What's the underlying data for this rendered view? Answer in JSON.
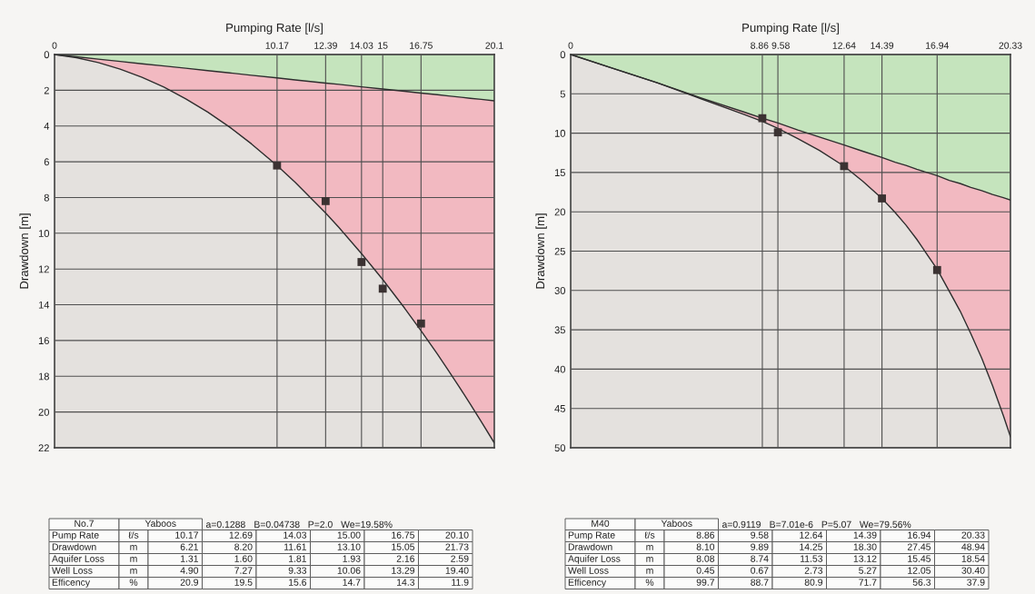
{
  "chart_data": [
    {
      "type": "area",
      "stacked": true,
      "xlabel": "Pumping Rate [l/s]",
      "ylabel": "Drawdown [m]",
      "x": [
        0,
        1,
        2,
        3,
        4,
        5,
        6,
        7,
        8,
        9,
        10.17,
        11,
        12.39,
        13,
        14.03,
        15,
        16,
        16.75,
        17.5,
        18,
        18.5,
        19,
        19.5,
        20.1
      ],
      "series": [
        {
          "color": "#c5e4bd",
          "values": [
            0,
            0.13,
            0.26,
            0.39,
            0.52,
            0.64,
            0.77,
            0.9,
            1.03,
            1.16,
            1.31,
            1.42,
            1.6,
            1.67,
            1.81,
            1.93,
            2.06,
            2.16,
            2.25,
            2.32,
            2.38,
            2.45,
            2.51,
            2.59
          ]
        },
        {
          "color": "#f2b9c1",
          "values": [
            0,
            0.05,
            0.19,
            0.43,
            0.76,
            1.18,
            1.71,
            2.32,
            3.03,
            3.84,
            4.9,
            5.73,
            7.27,
            8.01,
            9.33,
            10.66,
            12.13,
            13.29,
            14.51,
            15.35,
            16.22,
            17.1,
            18.02,
            19.14
          ]
        },
        {
          "type": "scatter",
          "marker": "square",
          "color": "#3b3232",
          "x": [
            10.17,
            12.39,
            14.03,
            15,
            16.75
          ],
          "values": [
            6.21,
            8.2,
            11.61,
            13.1,
            15.05
          ]
        }
      ],
      "xlim": [
        0,
        20.1
      ],
      "xticks": [
        0,
        10.17,
        12.39,
        14.03,
        15,
        16.75,
        20.1
      ],
      "ylim": [
        22,
        0
      ],
      "yticks": [
        0,
        2,
        4,
        6,
        8,
        10,
        12,
        14,
        16,
        18,
        20,
        22
      ],
      "grid": true,
      "annotations": [
        "No.7",
        "Yaboos",
        "a=0.1288",
        "B=0.04738",
        "P=2.0",
        "We=19.58%",
        "Pump Rate",
        "ℓ/s",
        "10.17",
        "12.69",
        "14.03",
        "15.00",
        "16.75",
        "20.10",
        "Drawdown",
        "m",
        "6.21",
        "8.20",
        "11.61",
        "13.10",
        "15.05",
        "21.73",
        "Aquifer Loss",
        "m",
        "1.31",
        "1.60",
        "1.81",
        "1.93",
        "2.16",
        "2.59",
        "Well Loss",
        "m",
        "4.90",
        "7.27",
        "9.33",
        "10.06",
        "13.29",
        "19.40",
        "Efficency",
        "%",
        "20.9",
        "19.5",
        "15.6",
        "14.7",
        "14.3",
        "11.9"
      ]
    },
    {
      "type": "area",
      "stacked": true,
      "xlabel": "Pumping Rate [l/s]",
      "ylabel": "Drawdown [m]",
      "x": [
        0,
        2,
        4,
        6,
        8,
        8.86,
        9.58,
        10.5,
        11.5,
        12.64,
        13.5,
        14.39,
        15,
        15.5,
        16,
        16.94,
        17.5,
        18,
        18.5,
        19,
        19.5,
        20,
        20.33
      ],
      "series": [
        {
          "color": "#c5e4bd",
          "values": [
            0,
            1.8,
            3.6,
            5.5,
            7.3,
            8.1,
            8.7,
            9.6,
            10.5,
            11.5,
            12.3,
            13.1,
            13.7,
            14.1,
            14.6,
            15.4,
            16.0,
            16.4,
            16.9,
            17.3,
            17.8,
            18.2,
            18.5
          ]
        },
        {
          "color": "#f2b9c1",
          "values": [
            0,
            0,
            0,
            0.1,
            0.3,
            0.4,
            0.7,
            1.1,
            1.7,
            2.7,
            3.8,
            5.2,
            6.4,
            7.6,
            8.9,
            11.9,
            14.1,
            16.2,
            18.6,
            21.3,
            24.3,
            27.7,
            30.1
          ]
        },
        {
          "type": "scatter",
          "marker": "square",
          "color": "#3b3232",
          "x": [
            8.86,
            9.58,
            12.64,
            14.39,
            16.94
          ],
          "values": [
            8.1,
            9.9,
            14.2,
            18.3,
            27.4
          ]
        }
      ],
      "xlim": [
        0,
        20.33
      ],
      "xticks": [
        0,
        8.86,
        9.58,
        12.64,
        14.39,
        16.94,
        20.33
      ],
      "ylim": [
        50,
        0
      ],
      "yticks": [
        0,
        5,
        10,
        15,
        20,
        25,
        30,
        35,
        40,
        45,
        50
      ],
      "grid": true,
      "annotations": [
        "M40",
        "Yaboos",
        "a=0.9119",
        "B=7.01e-6",
        "P=5.07",
        "We=79.56%",
        "Pump Rate",
        "ℓ/s",
        "8.86",
        "9.58",
        "12.64",
        "14.39",
        "16.94",
        "20.33",
        "Drawdown",
        "m",
        "8.10",
        "9.89",
        "14.25",
        "18.30",
        "27.45",
        "48.94",
        "Aquifer Loss",
        "m",
        "8.08",
        "8.74",
        "11.53",
        "13.12",
        "15.45",
        "18.54",
        "Well Loss",
        "m",
        "0.45",
        "0.67",
        "2.73",
        "5.27",
        "12.05",
        "30.40",
        "Efficency",
        "%",
        "99.7",
        "88.7",
        "80.9",
        "71.7",
        "56.3",
        "37.9"
      ]
    }
  ]
}
